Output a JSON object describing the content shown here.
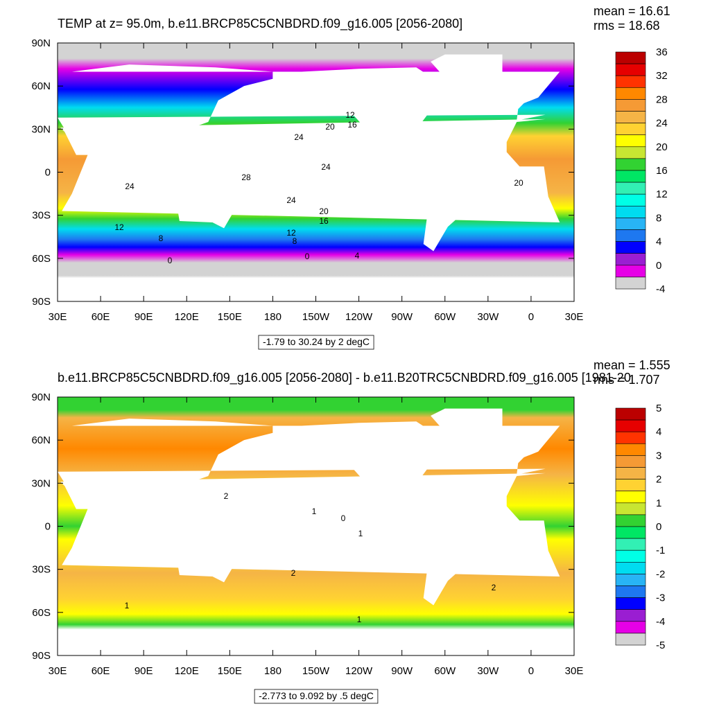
{
  "lon_labels": [
    "30E",
    "60E",
    "90E",
    "120E",
    "150E",
    "180",
    "150W",
    "120W",
    "90W",
    "60W",
    "30W",
    "0",
    "30E"
  ],
  "lat_labels": [
    "90N",
    "60N",
    "30N",
    "0",
    "30S",
    "60S",
    "90S"
  ],
  "panels": [
    {
      "title": "TEMP at z=  95.0m, b.e11.BRCP85C5CNBDRD.f09_g16.005 [2056-2080]",
      "mean": "mean = 16.61",
      "rms": "rms = 18.68",
      "subtitle": "-1.79 to 30.24 by 2 degC",
      "colorbar": {
        "labels": [
          36,
          32,
          28,
          24,
          20,
          16,
          12,
          8,
          4,
          0,
          -4
        ],
        "colors": [
          "#bb0000",
          "#e60000",
          "#ff3300",
          "#ff8800",
          "#f59a35",
          "#f5b446",
          "#ffd232",
          "#ffff00",
          "#c8e632",
          "#32d232",
          "#00e664",
          "#32f0b4",
          "#00ffe6",
          "#00dcf0",
          "#28b4f5",
          "#1e78f0",
          "#0000ff",
          "#9a1ed2",
          "#e600e6",
          "#d3d3d3",
          "#707070"
        ]
      },
      "contour_labels": [
        "12",
        "16",
        "20",
        "24",
        "24",
        "28",
        "24",
        "24",
        "20",
        "16",
        "12",
        "12",
        "8",
        "8",
        "0",
        "0",
        "4",
        "20"
      ]
    },
    {
      "title": "b.e11.BRCP85C5CNBDRD.f09_g16.005 [2056-2080] - b.e11.B20TRC5CNBDRD.f09_g16.005 [1981-20",
      "mean": "mean = 1.555",
      "rms": "rms = 1.707",
      "subtitle": "-2.773 to 9.092 by .5 degC",
      "colorbar": {
        "labels": [
          5,
          4,
          3,
          2,
          1,
          0,
          -1,
          -2,
          -3,
          -4,
          -5
        ],
        "colors": [
          "#bb0000",
          "#e60000",
          "#ff3300",
          "#ff8800",
          "#f59a35",
          "#f5b446",
          "#ffd232",
          "#ffff00",
          "#c8e632",
          "#32d232",
          "#00e664",
          "#32f0b4",
          "#00ffe6",
          "#00dcf0",
          "#28b4f5",
          "#1e78f0",
          "#0000ff",
          "#9a1ed2",
          "#e600e6",
          "#d3d3d3",
          "#707070"
        ]
      },
      "contour_labels": [
        "2",
        "1",
        "0",
        "1",
        "2",
        "2",
        "1",
        "1"
      ]
    }
  ]
}
